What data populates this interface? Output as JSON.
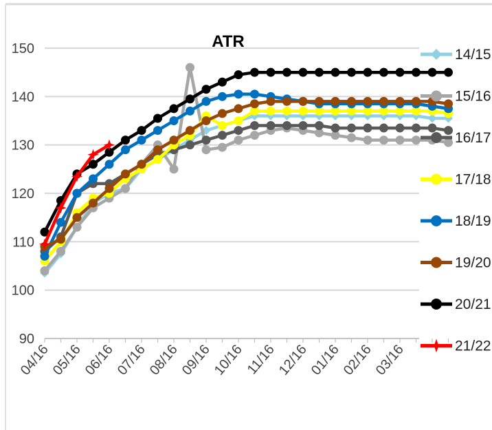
{
  "chart_data": {
    "type": "line",
    "title": "ATR",
    "xlabel": "",
    "ylabel": "",
    "ylim": [
      90,
      150
    ],
    "yticks": [
      90,
      100,
      110,
      120,
      130,
      140,
      150
    ],
    "grid": true,
    "legend_position": "right",
    "x_tick_labels": [
      "04/16",
      "05/16",
      "06/16",
      "07/16",
      "08/16",
      "09/16",
      "10/16",
      "11/16",
      "12/16",
      "01/16",
      "02/16",
      "03/16"
    ],
    "x_points_per_month": 2,
    "series": [
      {
        "name": "14/15",
        "color": "#8fd0e3",
        "marker": "diamond",
        "values": [
          103.5,
          107.5,
          113,
          118,
          120,
          121,
          125,
          127,
          129,
          131,
          133,
          134,
          135,
          136,
          136,
          136,
          136,
          136,
          136,
          136,
          136,
          136,
          136,
          136,
          135.5,
          135.5
        ]
      },
      {
        "name": "15/16",
        "color": "#a6a6a6",
        "marker": "circle",
        "values": [
          104,
          108,
          113,
          117,
          119,
          121,
          126,
          130,
          125,
          146,
          129,
          129.5,
          131,
          132,
          133,
          133.5,
          133,
          132.5,
          132,
          131.5,
          131,
          131,
          131,
          131,
          131,
          130.5
        ]
      },
      {
        "name": "16/17",
        "color": "#595959",
        "marker": "circle",
        "values": [
          108,
          111,
          120,
          122,
          122,
          124,
          126,
          128,
          129,
          130,
          131,
          132,
          133,
          134,
          134,
          134,
          134,
          134,
          133.5,
          133.5,
          133.5,
          133.5,
          133.5,
          133.5,
          133.5,
          133
        ]
      },
      {
        "name": "17/18",
        "color": "#ffff00",
        "marker": "circle",
        "values": [
          106,
          110,
          116,
          119,
          120,
          123,
          125,
          127,
          130,
          132,
          136,
          134,
          135,
          137,
          137,
          137,
          137,
          137,
          137,
          137,
          137,
          137,
          137,
          137,
          137,
          136.5
        ]
      },
      {
        "name": "18/19",
        "color": "#0070c0",
        "marker": "circle",
        "values": [
          107,
          114,
          120,
          123,
          126,
          129,
          131,
          133,
          135,
          137,
          139,
          140,
          140.5,
          140.5,
          140,
          139.5,
          139,
          138.5,
          138.5,
          138.5,
          138.5,
          138.5,
          138.5,
          138.5,
          138,
          137.5
        ]
      },
      {
        "name": "19/20",
        "color": "#974706",
        "marker": "circle",
        "values": [
          109,
          110.5,
          115,
          118,
          121,
          124,
          126,
          129,
          131,
          133,
          135,
          136.5,
          137.5,
          138.5,
          139,
          139,
          139,
          139,
          139,
          139,
          139,
          139,
          139,
          139,
          139,
          138.5
        ]
      },
      {
        "name": "20/21",
        "color": "#000000",
        "marker": "circle",
        "values": [
          112,
          118.5,
          124,
          126,
          128.5,
          131,
          133,
          135.5,
          137.5,
          139.5,
          141.5,
          143,
          144.5,
          145,
          145,
          145,
          145,
          145,
          145,
          145,
          145,
          145,
          145,
          145,
          145,
          145
        ]
      },
      {
        "name": "21/22",
        "color": "#ff0000",
        "marker": "star",
        "values": [
          109.5,
          117,
          123.5,
          128,
          130
        ]
      }
    ]
  }
}
